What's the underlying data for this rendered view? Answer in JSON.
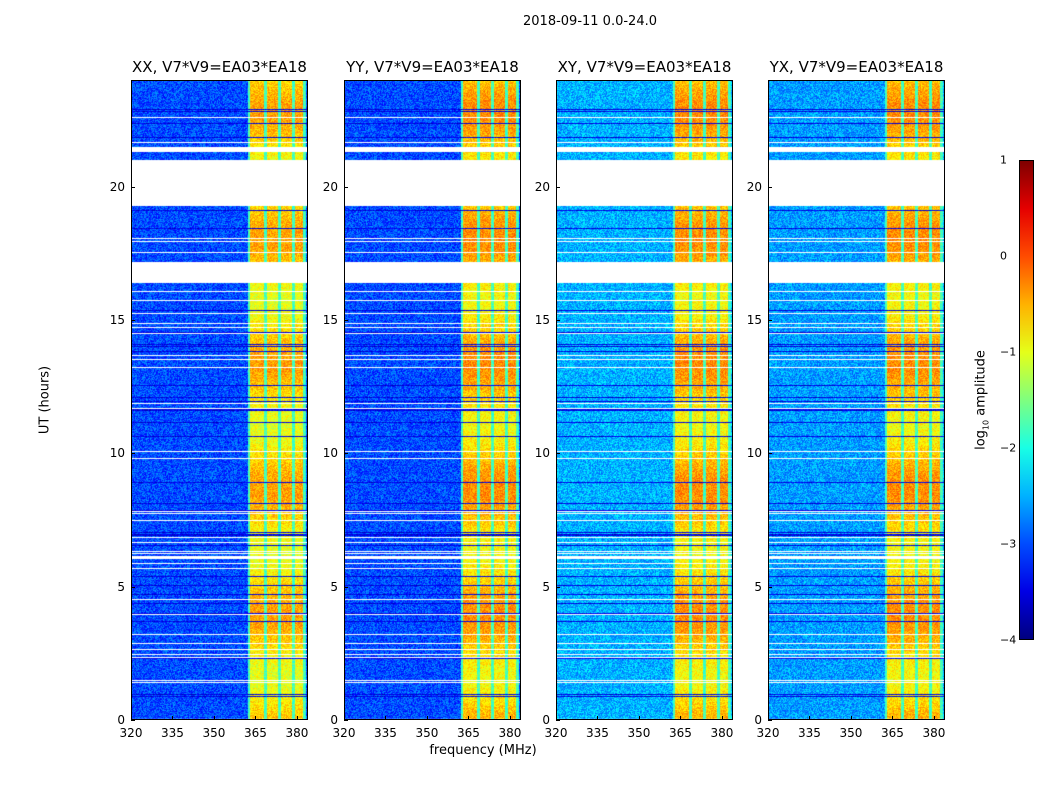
{
  "suptitle": "2018-09-11 0.0-24.0",
  "chart_data": {
    "type": "heatmap",
    "xlabel": "frequency (MHz)",
    "ylabel": "UT (hours)",
    "xlim": [
      320,
      384
    ],
    "ylim": [
      0,
      24
    ],
    "xticks": [
      "320",
      "335",
      "350",
      "365",
      "380"
    ],
    "xtick_values": [
      320,
      335,
      350,
      365,
      380
    ],
    "yticks": [
      "0",
      "5",
      "10",
      "15",
      "20"
    ],
    "ytick_values": [
      0,
      5,
      10,
      15,
      20
    ],
    "panels": [
      {
        "title": "XX, V7*V9=EA03*EA18",
        "background_log_amp": -3.0,
        "band_log_amp": -0.7
      },
      {
        "title": "YY, V7*V9=EA03*EA18",
        "background_log_amp": -3.0,
        "band_log_amp": -0.6
      },
      {
        "title": "XY, V7*V9=EA03*EA18",
        "background_log_amp": -2.5,
        "band_log_amp": -0.6
      },
      {
        "title": "YX, V7*V9=EA03*EA18",
        "background_log_amp": -2.6,
        "band_log_amp": -0.6
      }
    ],
    "bright_bands_mhz": [
      [
        363,
        368
      ],
      [
        369,
        373
      ],
      [
        374,
        378
      ],
      [
        379,
        382
      ]
    ],
    "flagged_time_ranges_hours": [
      [
        19.3,
        21.0
      ],
      [
        16.4,
        17.2
      ],
      [
        21.3,
        21.5
      ]
    ],
    "colorbar": {
      "label": "log10 amplitude",
      "label_base": "log",
      "label_sub": "10",
      "label_rest": " amplitude",
      "range": [
        -4,
        1
      ],
      "ticks": [
        "1",
        "0",
        "−1",
        "−2",
        "−3",
        "−4"
      ],
      "tick_values": [
        1,
        0,
        -1,
        -2,
        -3,
        -4
      ],
      "colormap": "jet"
    }
  }
}
